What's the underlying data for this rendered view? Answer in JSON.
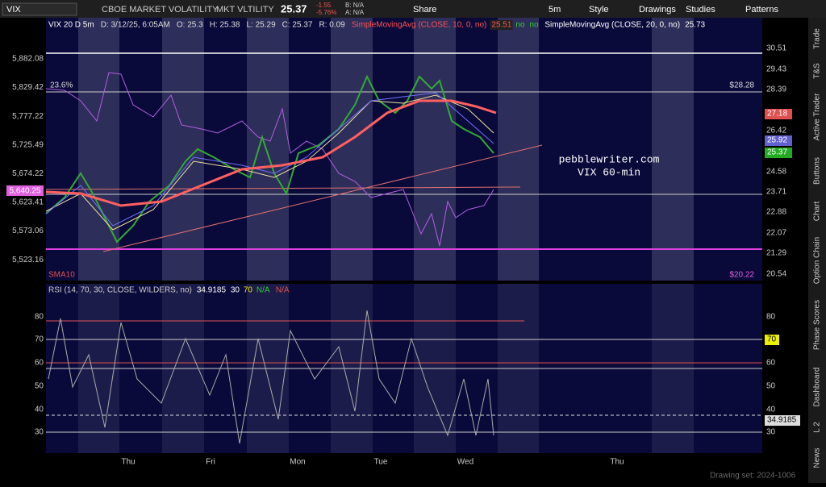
{
  "toolbar": {
    "symbol": "VIX",
    "description": "CBOE MARKET VOLATILITY",
    "exchange": "MKT VLTILITY",
    "last": "25.37",
    "change": "-1.55",
    "change_pct": "-5.76%",
    "bid": "B: N/A",
    "ask": "A: N/A",
    "buttons": [
      "Share",
      "5m",
      "Style",
      "Drawings",
      "Studies",
      "Patterns"
    ]
  },
  "side_tabs": [
    "Trade",
    "T&S",
    "Active Trader",
    "Buttons",
    "Chart",
    "Option Chain",
    "Phase Scores",
    "Dashboard",
    "L 2",
    "News"
  ],
  "price_panel": {
    "header": [
      "VIX 20 D 5m",
      "D: 3/12/25, 6:05AM",
      "O: 25.3",
      "H: 25.38",
      "L: 25.29",
      "C: 25.37",
      "R: 0.09"
    ],
    "sma10": {
      "label": "SimpleMovingAvg (CLOSE, 10, 0, no)",
      "value": "25.51",
      "flags": [
        "no",
        "no"
      ]
    },
    "sma20": {
      "label": "SimpleMovingAvg (CLOSE, 20, 0, no)",
      "value": "25.73"
    },
    "left_axis": [
      "5,882.08",
      "5,829.42",
      "5,777.22",
      "5,725.49",
      "5,674.22",
      "5,623.41",
      "5,573.06",
      "5,523.16"
    ],
    "left_marker": "5,640.25",
    "right_axis": [
      "30.51",
      "29.43",
      "28.39",
      "26.42",
      "24.58",
      "23.71",
      "22.88",
      "22.07",
      "21.29",
      "20.54"
    ],
    "right_badges": [
      "27.18",
      "25.92",
      "25.37"
    ],
    "annotations": {
      "fib": "23.6%",
      "upper_price": "$28.28",
      "site": "pebblewriter.com",
      "caption": "VIX 60-min",
      "study": "SMA10",
      "lower_price": "$20.22"
    }
  },
  "rsi_panel": {
    "header": "RSI (14, 70, 30, CLOSE, WILDERS, no)",
    "value": "34.9185",
    "levels": [
      "30",
      "70"
    ],
    "flags": [
      "N/A",
      "N/A"
    ],
    "left_axis": [
      "80",
      "70",
      "60",
      "50",
      "40",
      "30"
    ],
    "right_axis": [
      "80",
      "60",
      "50",
      "40",
      "30"
    ],
    "right_badges": [
      "70",
      "34.9185"
    ]
  },
  "x_axis": [
    "Thu",
    "Fri",
    "Mon",
    "Tue",
    "Wed",
    "Thu"
  ],
  "footer": "Drawing set: 2024-1006"
}
